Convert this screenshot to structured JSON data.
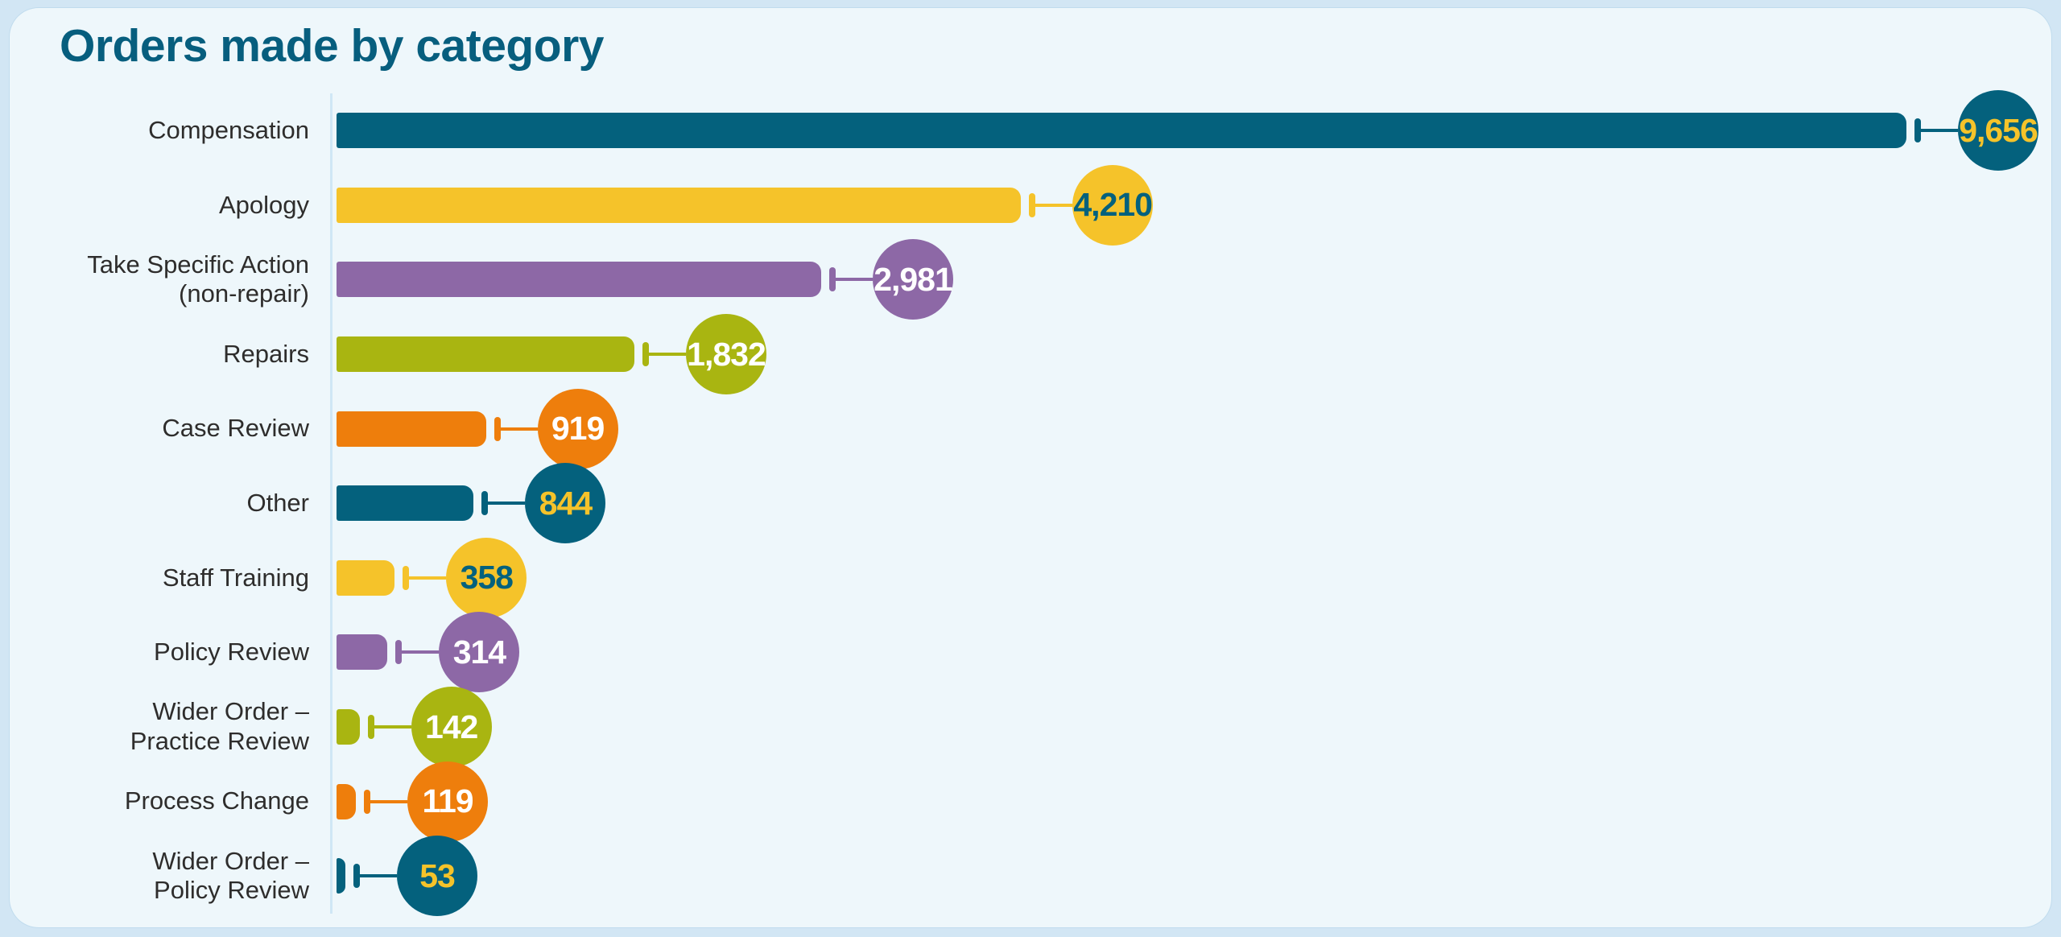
{
  "page": {
    "background_color": "#d2e6f4",
    "card_background_color": "#eef7fb",
    "axis_line_color": "#cfe7f5",
    "label_color": "#2e2d2c",
    "title_color": "#075e7e"
  },
  "header": {
    "title": "Orders made by category"
  },
  "palette": {
    "teal": "#04617d",
    "yellow": "#f5c32a",
    "purple": "#8d68a6",
    "green": "#a9b511",
    "orange": "#ee7e0c",
    "white": "#ffffff"
  },
  "chart_data": {
    "type": "bar",
    "orientation": "horizontal",
    "title": "Orders made by category",
    "categories": [
      "Compensation",
      "Apology",
      "Take Specific Action (non-repair)",
      "Repairs",
      "Case Review",
      "Other",
      "Staff Training",
      "Policy Review",
      "Wider Order – Practice Review",
      "Process Change",
      "Wider Order – Policy Review"
    ],
    "label_lines": [
      [
        "Compensation"
      ],
      [
        "Apology"
      ],
      [
        "Take Specific Action",
        "(non-repair)"
      ],
      [
        "Repairs"
      ],
      [
        "Case Review"
      ],
      [
        "Other"
      ],
      [
        "Staff Training"
      ],
      [
        "Policy Review"
      ],
      [
        "Wider Order –",
        "Practice Review"
      ],
      [
        "Process Change"
      ],
      [
        "Wider Order –",
        "Policy Review"
      ]
    ],
    "values": [
      9656,
      4210,
      2981,
      1832,
      919,
      844,
      358,
      314,
      142,
      119,
      53
    ],
    "value_labels": [
      "9,656",
      "4,210",
      "2,981",
      "1,832",
      "919",
      "844",
      "358",
      "314",
      "142",
      "119",
      "53"
    ],
    "bar_color_names": [
      "teal",
      "yellow",
      "purple",
      "green",
      "orange",
      "teal",
      "yellow",
      "purple",
      "green",
      "orange",
      "teal"
    ],
    "badge_text_color_names": [
      "yellow",
      "teal",
      "white",
      "white",
      "white",
      "yellow",
      "teal",
      "white",
      "white",
      "white",
      "yellow"
    ],
    "xlim": [
      0,
      9656
    ],
    "grid": false,
    "legend": false,
    "xlabel": "",
    "ylabel": "",
    "value_display": "circular badge at end of each bar, connected by tick and line in bar color"
  }
}
